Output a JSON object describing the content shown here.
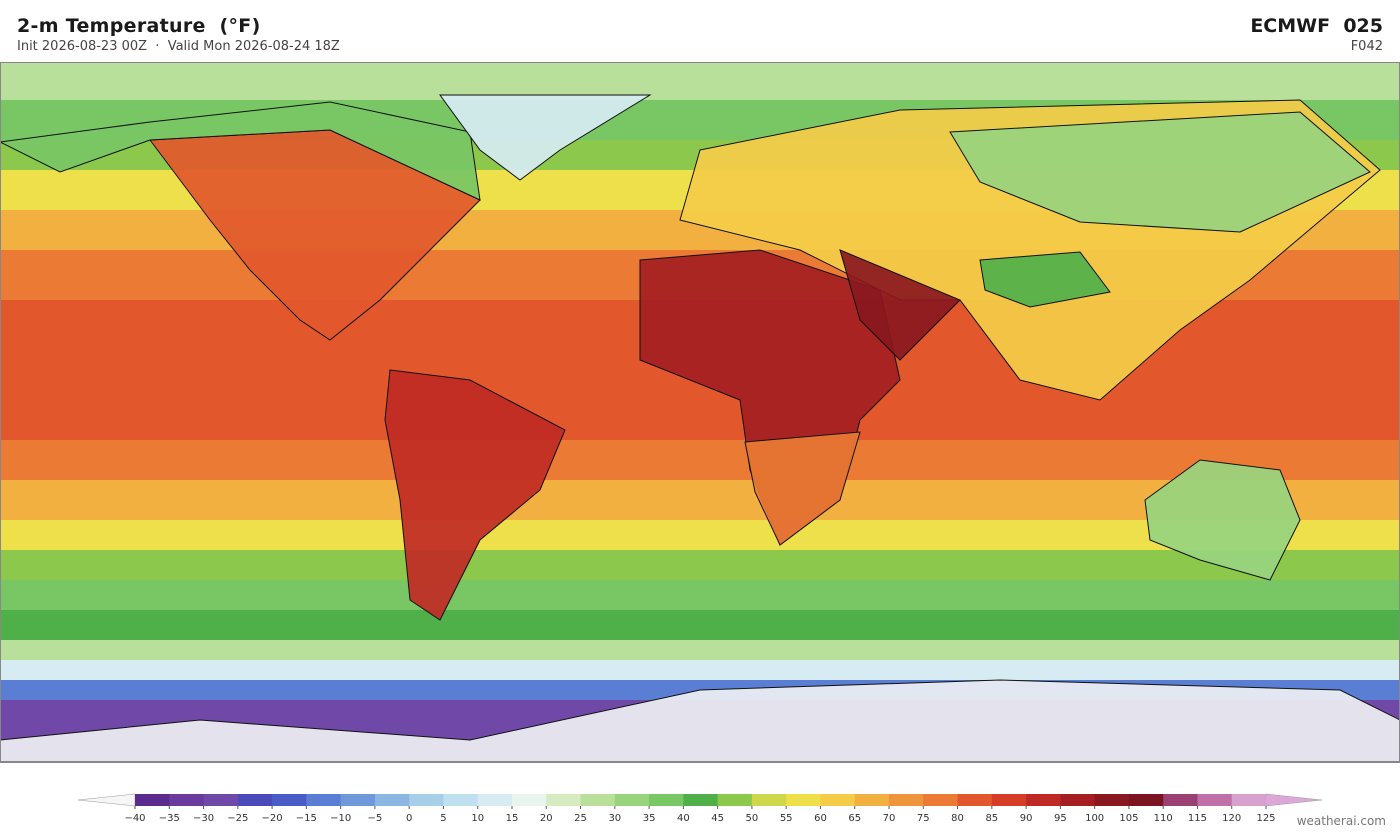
{
  "header": {
    "title": "2-m Temperature  (°F)",
    "subtitle": "Init 2026-08-23 00Z  ·  Valid Mon 2026-08-24 18Z",
    "model": "ECMWF  025",
    "forecast_hour": "F042"
  },
  "colorbar": {
    "ticks": [
      {
        "value": -40,
        "label": "−40"
      },
      {
        "value": -35,
        "label": "−35"
      },
      {
        "value": -30,
        "label": "−30"
      },
      {
        "value": -25,
        "label": "−25"
      },
      {
        "value": -20,
        "label": "−20"
      },
      {
        "value": -15,
        "label": "−15"
      },
      {
        "value": -10,
        "label": "−10"
      },
      {
        "value": -5,
        "label": "−5"
      },
      0,
      5,
      10,
      15,
      20,
      25,
      30,
      35,
      40,
      45,
      50,
      55,
      60,
      65,
      70,
      75,
      80,
      85,
      90,
      95,
      100,
      105,
      110,
      115,
      120,
      125
    ],
    "colors": [
      "#5b2a8f",
      "#6a3a9e",
      "#7048a8",
      "#4a4ab8",
      "#4a5cc8",
      "#5a7ed4",
      "#6f98da",
      "#8cb6e2",
      "#a8cfea",
      "#bfe0f0",
      "#d6ecf2",
      "#e8f4ee",
      "#d6ecc0",
      "#b8e09a",
      "#98d47e",
      "#78c664",
      "#4fb04a",
      "#8cc84c",
      "#cfd84a",
      "#eee04a",
      "#f4cc48",
      "#f2b040",
      "#ee943a",
      "#ea7a34",
      "#e2582c",
      "#d43e28",
      "#c02a24",
      "#a41e22",
      "#8a1820",
      "#7a1420",
      "#9a4072",
      "#c070a8",
      "#d8a0cc"
    ],
    "under_color": "#f6f6f6",
    "over_color": "#dca8d8"
  },
  "footer": {
    "credit": "weatherai.com"
  }
}
